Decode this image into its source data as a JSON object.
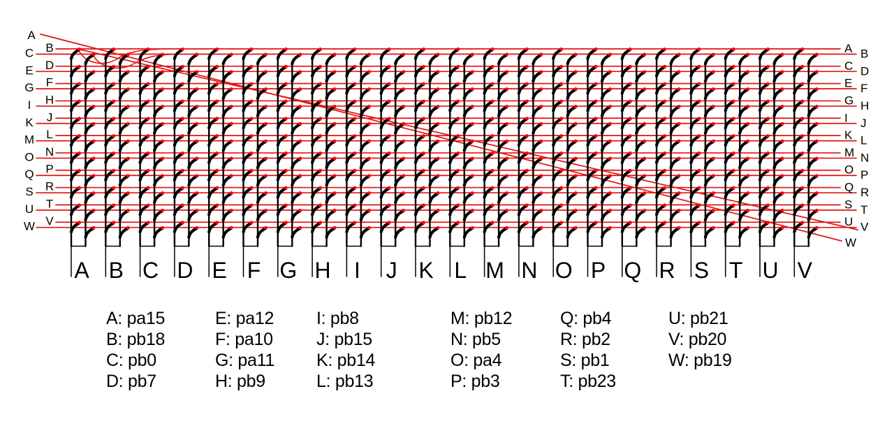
{
  "diagram": {
    "kind": "keyboard-matrix-wiring",
    "row_nets": [
      "A",
      "B",
      "C",
      "D",
      "E",
      "F",
      "G",
      "H",
      "I",
      "J",
      "K",
      "L",
      "M",
      "N",
      "O",
      "P",
      "Q",
      "R",
      "S",
      "T",
      "U",
      "V",
      "W"
    ],
    "column_labels": [
      "A",
      "B",
      "C",
      "D",
      "E",
      "F",
      "G",
      "H",
      "I",
      "J",
      "K",
      "L",
      "M",
      "N",
      "O",
      "P",
      "Q",
      "R",
      "S",
      "T",
      "U",
      "V"
    ],
    "right_end_label": "W",
    "colors": {
      "row_wire": "#e31212",
      "column_wire": "#000000",
      "junction_dot": "#fa0505",
      "label_text": "#000000",
      "background": "#ffffff"
    }
  },
  "legend": {
    "separator": ": ",
    "columns": [
      [
        {
          "key": "A",
          "pin": "pa15"
        },
        {
          "key": "B",
          "pin": "pb18"
        },
        {
          "key": "C",
          "pin": "pb0"
        },
        {
          "key": "D",
          "pin": "pb7"
        }
      ],
      [
        {
          "key": "E",
          "pin": "pa12"
        },
        {
          "key": "F",
          "pin": "pa10"
        },
        {
          "key": "G",
          "pin": "pa11"
        },
        {
          "key": "H",
          "pin": "pb9"
        }
      ],
      [
        {
          "key": "I",
          "pin": "pb8"
        },
        {
          "key": "J",
          "pin": "pb15"
        },
        {
          "key": "K",
          "pin": "pb14"
        },
        {
          "key": "L",
          "pin": "pb13"
        }
      ],
      [
        {
          "key": "M",
          "pin": "pb12"
        },
        {
          "key": "N",
          "pin": "pb5"
        },
        {
          "key": "O",
          "pin": "pa4"
        },
        {
          "key": "P",
          "pin": "pb3"
        }
      ],
      [
        {
          "key": "Q",
          "pin": "pb4"
        },
        {
          "key": "R",
          "pin": "pb2"
        },
        {
          "key": "S",
          "pin": "pb1"
        },
        {
          "key": "T",
          "pin": "pb23"
        }
      ],
      [
        {
          "key": "U",
          "pin": "pb21"
        },
        {
          "key": "V",
          "pin": "pb20"
        },
        {
          "key": "W",
          "pin": "pb19"
        }
      ]
    ],
    "column_lefts": [
      152,
      308,
      453,
      645,
      802,
      957
    ]
  }
}
